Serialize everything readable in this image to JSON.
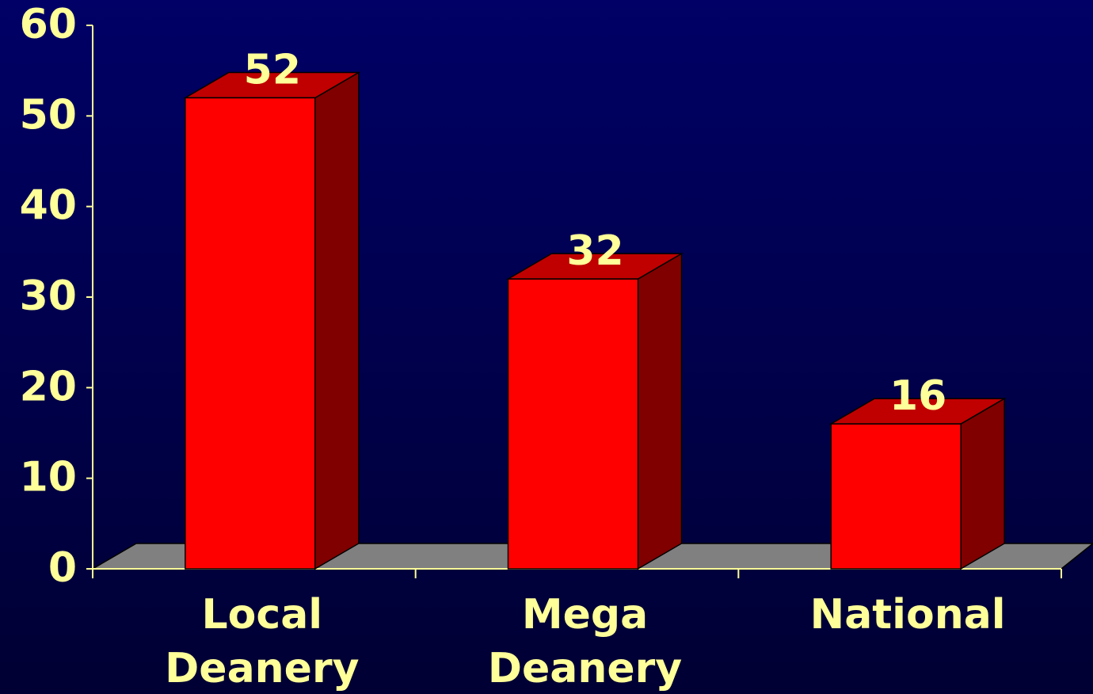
{
  "chart_data": {
    "type": "bar3d",
    "categories": [
      "Local Deanery",
      "Mega Deanery",
      "National"
    ],
    "values": [
      52,
      32,
      16
    ],
    "color": "#ff0000",
    "ylim": [
      0,
      60
    ],
    "yticks": [
      0,
      10,
      20,
      30,
      40,
      50,
      60
    ],
    "grid": false
  }
}
